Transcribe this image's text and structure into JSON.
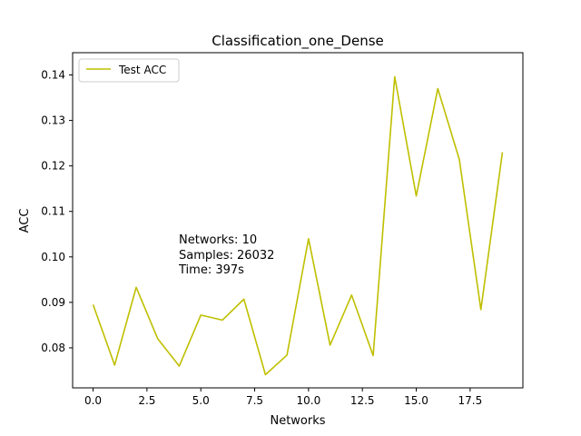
{
  "chart_data": {
    "type": "line",
    "title": "Classification_one_Dense",
    "xlabel": "Networks",
    "ylabel": "ACC",
    "xlim": [
      -0.95,
      19.95
    ],
    "ylim": [
      0.0712,
      0.1449
    ],
    "xticks": [
      "0.0",
      "2.5",
      "5.0",
      "7.5",
      "10.0",
      "12.5",
      "15.0",
      "17.5"
    ],
    "xtick_values": [
      0,
      2.5,
      5,
      7.5,
      10,
      12.5,
      15,
      17.5
    ],
    "yticks": [
      "0.08",
      "0.09",
      "0.10",
      "0.11",
      "0.12",
      "0.13",
      "0.14"
    ],
    "ytick_values": [
      0.08,
      0.09,
      0.1,
      0.11,
      0.12,
      0.13,
      0.14
    ],
    "grid": false,
    "legend_position": "upper-left",
    "series": [
      {
        "name": "Test ACC",
        "color": "#bfbf00",
        "x": [
          0,
          1,
          2,
          3,
          4,
          5,
          6,
          7,
          8,
          9,
          10,
          11,
          12,
          13,
          14,
          15,
          16,
          17,
          18,
          19
        ],
        "y": [
          0.0895,
          0.0762,
          0.0933,
          0.082,
          0.076,
          0.0872,
          0.0861,
          0.0907,
          0.0741,
          0.0784,
          0.104,
          0.0806,
          0.0916,
          0.0783,
          0.1396,
          0.1134,
          0.137,
          0.1214,
          0.0884,
          0.123
        ]
      }
    ],
    "annotation": {
      "lines": [
        "Networks: 10",
        "Samples: 26032",
        "Time: 397s"
      ]
    }
  }
}
